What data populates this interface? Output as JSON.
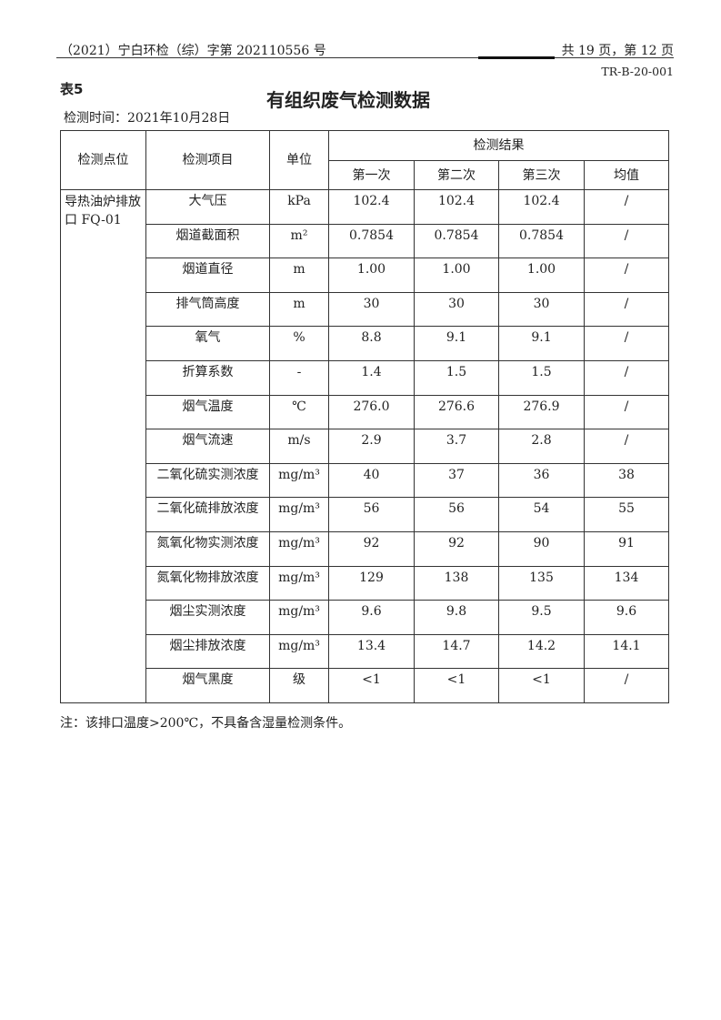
{
  "header": {
    "doc_number": "（2021）宁白环检（综）字第 202110556 号",
    "page_info": "共 19 页，第 12 页",
    "form_code": "TR-B-20-001"
  },
  "table_label": "表5",
  "title": "有组织废气检测数据",
  "test_date": "检测时间：2021年10月28日",
  "table": {
    "headers": {
      "point": "检测点位",
      "item": "检测项目",
      "unit": "单位",
      "results": "检测结果",
      "first": "第一次",
      "second": "第二次",
      "third": "第三次",
      "average": "均值"
    },
    "point": "导热油炉排放口 FQ-01",
    "rows": [
      {
        "item": "大气压",
        "unit": "kPa",
        "v1": "102.4",
        "v2": "102.4",
        "v3": "102.4",
        "avg": "/"
      },
      {
        "item": "烟道截面积",
        "unit": "m²",
        "v1": "0.7854",
        "v2": "0.7854",
        "v3": "0.7854",
        "avg": "/"
      },
      {
        "item": "烟道直径",
        "unit": "m",
        "v1": "1.00",
        "v2": "1.00",
        "v3": "1.00",
        "avg": "/"
      },
      {
        "item": "排气筒高度",
        "unit": "m",
        "v1": "30",
        "v2": "30",
        "v3": "30",
        "avg": "/"
      },
      {
        "item": "氧气",
        "unit": "%",
        "v1": "8.8",
        "v2": "9.1",
        "v3": "9.1",
        "avg": "/"
      },
      {
        "item": "折算系数",
        "unit": "-",
        "v1": "1.4",
        "v2": "1.5",
        "v3": "1.5",
        "avg": "/"
      },
      {
        "item": "烟气温度",
        "unit": "℃",
        "v1": "276.0",
        "v2": "276.6",
        "v3": "276.9",
        "avg": "/"
      },
      {
        "item": "烟气流速",
        "unit": "m/s",
        "v1": "2.9",
        "v2": "3.7",
        "v3": "2.8",
        "avg": "/"
      },
      {
        "item": "二氧化硫实测浓度",
        "unit": "mg/m³",
        "v1": "40",
        "v2": "37",
        "v3": "36",
        "avg": "38"
      },
      {
        "item": "二氧化硫排放浓度",
        "unit": "mg/m³",
        "v1": "56",
        "v2": "56",
        "v3": "54",
        "avg": "55"
      },
      {
        "item": "氮氧化物实测浓度",
        "unit": "mg/m³",
        "v1": "92",
        "v2": "92",
        "v3": "90",
        "avg": "91"
      },
      {
        "item": "氮氧化物排放浓度",
        "unit": "mg/m³",
        "v1": "129",
        "v2": "138",
        "v3": "135",
        "avg": "134"
      },
      {
        "item": "烟尘实测浓度",
        "unit": "mg/m³",
        "v1": "9.6",
        "v2": "9.8",
        "v3": "9.5",
        "avg": "9.6"
      },
      {
        "item": "烟尘排放浓度",
        "unit": "mg/m³",
        "v1": "13.4",
        "v2": "14.7",
        "v3": "14.2",
        "avg": "14.1"
      },
      {
        "item": "烟气黑度",
        "unit": "级",
        "v1": "<1",
        "v2": "<1",
        "v3": "<1",
        "avg": "/"
      }
    ]
  },
  "note": "注：该排口温度>200℃，不具备含湿量检测条件。"
}
